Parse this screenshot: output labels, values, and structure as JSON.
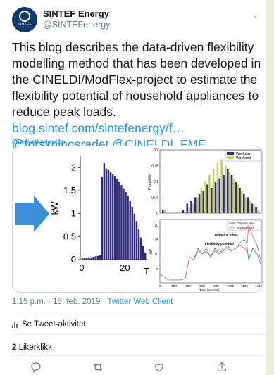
{
  "tweet": {
    "author_name": "SINTEF Energy",
    "author_handle": "@SINTEFenergy",
    "avatar_text": "SINTEF",
    "text_main": "This blog describes the data-driven flexibility modelling method that has been developed in the CINELDI/ModFlex-project to estimate the flexibility potential of household appliances to reduce peak loads.",
    "text_link": "blog.sintef.com/sintefenergy/f…",
    "text_mentions": "@forskningsradet @CINELDI_FME",
    "translate_label": "Oversett tweeten",
    "timestamp": "1:15 p.m. · 15. feb. 2019 ·",
    "client": "Twitter Web Client",
    "activity_label": "Se Tweet-aktivitet",
    "likes_count": "2",
    "likes_label": "Likerklikk"
  },
  "colors": {
    "accent": "#1b95e0",
    "bar_main": "#2b2a7c",
    "weekday": "#2b2a7c",
    "weekend": "#c8cf5a",
    "original_load": "#2e86c1",
    "shifted_load": "#e4643c"
  },
  "icons": [
    "reply-icon",
    "retweet-icon",
    "like-icon",
    "share-icon",
    "chevron-down-icon",
    "arrow-right-icon"
  ],
  "chart_data": [
    {
      "type": "bar",
      "xlabel": "T",
      "ylabel": "kW",
      "xticks": [
        "0",
        "20"
      ],
      "yticks": [
        "0",
        "0.5",
        "1",
        "1.5",
        "2"
      ],
      "ylim": [
        0,
        2.25
      ],
      "x": [
        1,
        2,
        3,
        4,
        5,
        6,
        7,
        8,
        9,
        10,
        11,
        12,
        13,
        14,
        15,
        16,
        17,
        18,
        19,
        20,
        21,
        22,
        23,
        24,
        25,
        26,
        27,
        28,
        29,
        30
      ],
      "values": [
        0.03,
        0.04,
        0.04,
        0.05,
        0.05,
        0.06,
        0.07,
        0.08,
        0.1,
        1.8,
        2.1,
        1.98,
        1.95,
        1.9,
        1.85,
        1.82,
        1.76,
        1.7,
        1.62,
        1.55,
        1.47,
        1.38,
        1.28,
        1.15,
        1.0,
        0.84,
        0.66,
        0.48,
        0.3,
        0.15
      ]
    },
    {
      "type": "bar",
      "ylabel": "Probability",
      "yticks": [
        "0",
        "0.05",
        "0.1",
        "0.15",
        "0.2"
      ],
      "ylim": [
        0,
        0.2
      ],
      "series": [
        {
          "name": "Weekday",
          "values": [
            0.01,
            0.0,
            0.0,
            0.0,
            0.0,
            0.01,
            0.03,
            0.04,
            0.05,
            0.06,
            0.07,
            0.09,
            0.08,
            0.1,
            0.11,
            0.12,
            0.14,
            0.12,
            0.1,
            0.08,
            0.06,
            0.05,
            0.03,
            0.02
          ]
        },
        {
          "name": "Weekend",
          "values": [
            0.01,
            0.0,
            0.0,
            0.0,
            0.0,
            0.0,
            0.02,
            0.03,
            0.05,
            0.08,
            0.1,
            0.12,
            0.14,
            0.16,
            0.17,
            0.15,
            0.13,
            0.11,
            0.09,
            0.07,
            0.05,
            0.04,
            0.03,
            0.01
          ]
        }
      ]
    },
    {
      "type": "line",
      "xlabel": "Time (minutes)",
      "ylabel": "kW",
      "xticks": [
        "0",
        "200",
        "400",
        "600",
        "800",
        "1000",
        "1200",
        "1400"
      ],
      "yticks": [
        "5",
        "10",
        "15",
        "20"
      ],
      "xlim": [
        0,
        1440
      ],
      "ylim": [
        0,
        22
      ],
      "annotations": [
        "Rebound effect",
        "Flexibility potential"
      ],
      "series": [
        {
          "name": "Original load",
          "x": [
            0,
            60,
            120,
            180,
            240,
            300,
            360,
            420,
            480,
            540,
            600,
            660,
            720,
            780,
            840,
            900,
            960,
            1020,
            1080,
            1140,
            1200,
            1230,
            1260,
            1320,
            1380,
            1440
          ],
          "values": [
            3,
            2,
            1,
            1,
            1,
            1,
            1.5,
            9,
            8,
            12,
            10,
            11,
            9,
            12,
            10,
            11,
            13,
            11,
            12,
            14,
            15,
            14,
            8,
            12,
            10,
            6
          ]
        },
        {
          "name": "Shifted load",
          "x": [
            0,
            60,
            120,
            180,
            240,
            300,
            360,
            420,
            480,
            540,
            600,
            660,
            720,
            780,
            840,
            900,
            960,
            1020,
            1080,
            1140,
            1200,
            1230,
            1260,
            1320,
            1380,
            1440
          ],
          "values": [
            3,
            2,
            1,
            1,
            1,
            1,
            1.5,
            9,
            8,
            11,
            10,
            12,
            9,
            11,
            10,
            12,
            12,
            11,
            12,
            13,
            12,
            11,
            20,
            16,
            13,
            7
          ]
        }
      ]
    }
  ]
}
